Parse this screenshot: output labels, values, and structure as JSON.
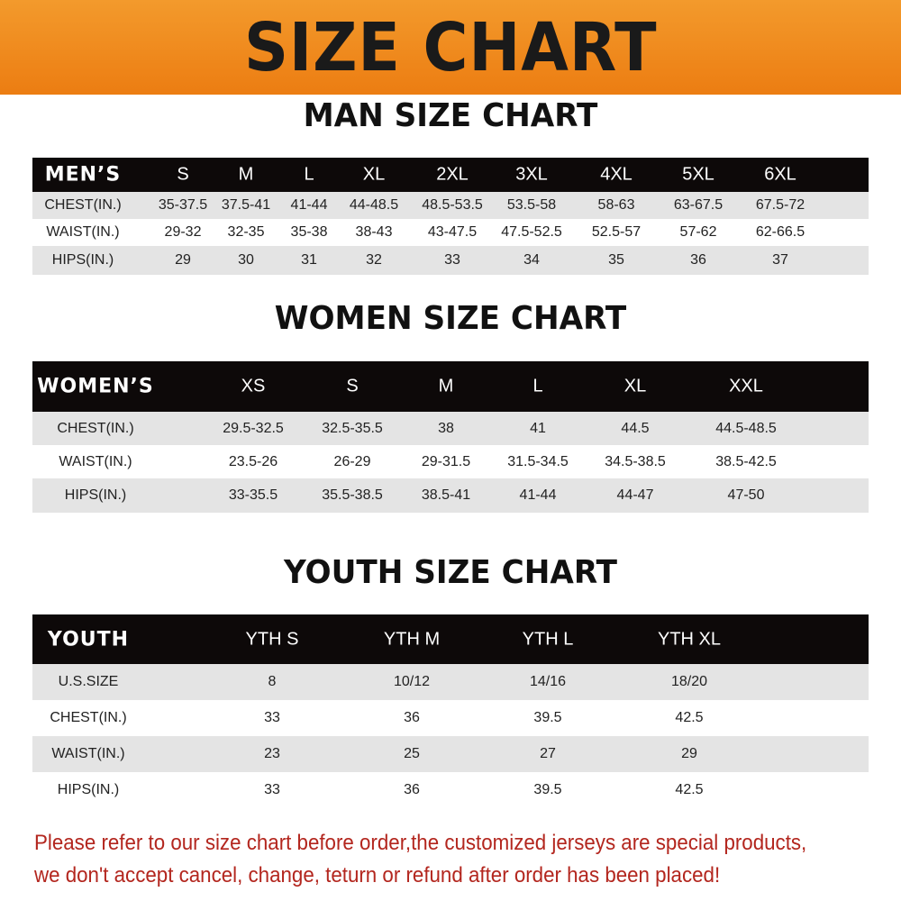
{
  "banner_title": "SIZE CHART",
  "men": {
    "title": "MAN SIZE CHART",
    "header": [
      "MEN’S",
      "S",
      "M",
      "L",
      "XL",
      "2XL",
      "3XL",
      "4XL",
      "5XL",
      "6XL"
    ],
    "rows": [
      [
        "CHEST(IN.)",
        "35-37.5",
        "37.5-41",
        "41-44",
        "44-48.5",
        "48.5-53.5",
        "53.5-58",
        "58-63",
        "63-67.5",
        "67.5-72"
      ],
      [
        "WAIST(IN.)",
        "29-32",
        "32-35",
        "35-38",
        "38-43",
        "43-47.5",
        "47.5-52.5",
        "52.5-57",
        "57-62",
        "62-66.5"
      ],
      [
        "HIPS(IN.)",
        "29",
        "30",
        "31",
        "32",
        "33",
        "34",
        "35",
        "36",
        "37"
      ]
    ]
  },
  "women": {
    "title": "WOMEN SIZE CHART",
    "header": [
      "WOMEN’S",
      "XS",
      "S",
      "M",
      "L",
      "XL",
      "XXL"
    ],
    "rows": [
      [
        "CHEST(IN.)",
        "29.5-32.5",
        "32.5-35.5",
        "38",
        "41",
        "44.5",
        "44.5-48.5"
      ],
      [
        "WAIST(IN.)",
        "23.5-26",
        "26-29",
        "29-31.5",
        "31.5-34.5",
        "34.5-38.5",
        "38.5-42.5"
      ],
      [
        "HIPS(IN.)",
        "33-35.5",
        "35.5-38.5",
        "38.5-41",
        "41-44",
        "44-47",
        "47-50"
      ]
    ]
  },
  "youth": {
    "title": "YOUTH SIZE CHART",
    "header": [
      "YOUTH",
      "YTH S",
      "YTH M",
      "YTH L",
      "YTH XL"
    ],
    "rows": [
      [
        "U.S.SIZE",
        "8",
        "10/12",
        "14/16",
        "18/20"
      ],
      [
        "CHEST(IN.)",
        "33",
        "36",
        "39.5",
        "42.5"
      ],
      [
        "WAIST(IN.)",
        "23",
        "25",
        "27",
        "29"
      ],
      [
        "HIPS(IN.)",
        "33",
        "36",
        "39.5",
        "42.5"
      ]
    ]
  },
  "footer": {
    "line1": "Please refer to our size chart before order,the customized jerseys are special products,",
    "line2": "we don't accept cancel, change, teturn or refund after order has been placed!"
  },
  "colors": {
    "banner": "#ec7d12",
    "header_bg": "#0d0909",
    "row_gray": "#e4e4e4",
    "footer_text": "#b3261e"
  }
}
